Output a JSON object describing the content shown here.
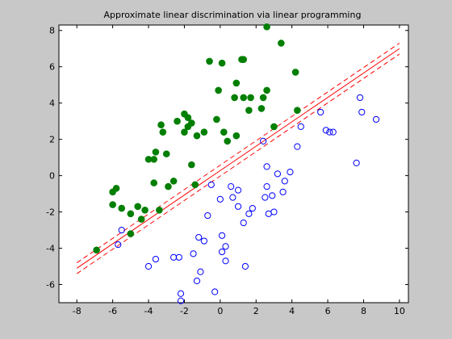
{
  "chart_data": {
    "type": "scatter",
    "title": "Approximate linear discrimination via linear programming",
    "xlabel": "",
    "ylabel": "",
    "xlim": [
      -9,
      10.5
    ],
    "ylim": [
      -7,
      8.3
    ],
    "xticks": [
      -8,
      -6,
      -4,
      -2,
      0,
      2,
      4,
      6,
      8,
      10
    ],
    "yticks": [
      -6,
      -4,
      -2,
      0,
      2,
      4,
      6,
      8
    ],
    "grid": false,
    "legend": "none",
    "series": [
      {
        "marker": "filled-circle",
        "color": "#007f00",
        "points": [
          [
            -6.9,
            -4.1
          ],
          [
            -5.0,
            -3.2
          ],
          [
            -4.4,
            -2.4
          ],
          [
            -5.0,
            -2.1
          ],
          [
            -5.5,
            -1.8
          ],
          [
            -6.0,
            -1.6
          ],
          [
            -4.6,
            -1.7
          ],
          [
            -4.2,
            -1.9
          ],
          [
            -6.0,
            -0.9
          ],
          [
            -5.8,
            -0.7
          ],
          [
            -3.4,
            -1.9
          ],
          [
            -4.0,
            0.9
          ],
          [
            -3.7,
            0.9
          ],
          [
            -3.7,
            -0.4
          ],
          [
            -3.6,
            1.3
          ],
          [
            -3.0,
            1.2
          ],
          [
            -2.9,
            -0.6
          ],
          [
            -2.6,
            -0.3
          ],
          [
            -3.2,
            2.4
          ],
          [
            -3.3,
            2.8
          ],
          [
            -2.4,
            3.0
          ],
          [
            -2.0,
            2.4
          ],
          [
            -2.0,
            3.4
          ],
          [
            -1.8,
            2.7
          ],
          [
            -1.8,
            3.2
          ],
          [
            -1.6,
            2.9
          ],
          [
            -1.6,
            0.6
          ],
          [
            -1.4,
            -0.5
          ],
          [
            -1.3,
            2.2
          ],
          [
            -0.9,
            2.4
          ],
          [
            -0.6,
            6.3
          ],
          [
            -0.2,
            3.1
          ],
          [
            -0.1,
            4.7
          ],
          [
            0.1,
            6.2
          ],
          [
            0.2,
            2.4
          ],
          [
            0.4,
            1.9
          ],
          [
            0.8,
            4.3
          ],
          [
            0.9,
            5.1
          ],
          [
            0.9,
            2.2
          ],
          [
            1.2,
            6.4
          ],
          [
            1.3,
            6.4
          ],
          [
            1.3,
            4.3
          ],
          [
            1.6,
            3.6
          ],
          [
            1.7,
            4.3
          ],
          [
            2.3,
            3.7
          ],
          [
            2.4,
            4.3
          ],
          [
            2.6,
            8.2
          ],
          [
            2.6,
            4.7
          ],
          [
            3.0,
            2.7
          ],
          [
            3.4,
            7.3
          ],
          [
            4.2,
            5.7
          ],
          [
            4.3,
            3.6
          ]
        ]
      },
      {
        "marker": "open-circle",
        "color": "#0000ff",
        "points": [
          [
            -5.5,
            -3.0
          ],
          [
            -5.7,
            -3.8
          ],
          [
            -4.0,
            -5.0
          ],
          [
            -3.6,
            -4.6
          ],
          [
            -2.6,
            -4.5
          ],
          [
            -2.3,
            -4.5
          ],
          [
            -2.2,
            -6.5
          ],
          [
            -2.2,
            -6.9
          ],
          [
            -1.5,
            -4.3
          ],
          [
            -1.3,
            -5.8
          ],
          [
            -1.1,
            -5.3
          ],
          [
            -1.2,
            -3.4
          ],
          [
            -0.9,
            -3.6
          ],
          [
            -0.7,
            -2.2
          ],
          [
            -0.5,
            -0.5
          ],
          [
            -0.3,
            -6.4
          ],
          [
            0.0,
            -1.3
          ],
          [
            0.1,
            -3.3
          ],
          [
            0.1,
            -4.2
          ],
          [
            0.3,
            -4.7
          ],
          [
            0.3,
            -3.9
          ],
          [
            0.6,
            -0.6
          ],
          [
            0.7,
            -1.2
          ],
          [
            1.0,
            -1.7
          ],
          [
            1.0,
            -0.8
          ],
          [
            1.3,
            -2.6
          ],
          [
            1.4,
            -5.0
          ],
          [
            1.6,
            -2.1
          ],
          [
            1.8,
            -1.8
          ],
          [
            2.4,
            1.9
          ],
          [
            2.5,
            -1.2
          ],
          [
            2.6,
            -0.6
          ],
          [
            2.6,
            0.5
          ],
          [
            2.7,
            -2.1
          ],
          [
            2.9,
            -1.1
          ],
          [
            3.0,
            -2.0
          ],
          [
            3.2,
            0.1
          ],
          [
            3.5,
            -0.9
          ],
          [
            3.6,
            -0.3
          ],
          [
            3.9,
            0.2
          ],
          [
            4.3,
            1.6
          ],
          [
            4.5,
            2.7
          ],
          [
            5.6,
            3.5
          ],
          [
            5.9,
            2.5
          ],
          [
            6.1,
            2.4
          ],
          [
            6.3,
            2.4
          ],
          [
            7.6,
            0.7
          ],
          [
            7.8,
            4.3
          ],
          [
            7.9,
            3.5
          ],
          [
            8.7,
            3.1
          ]
        ]
      }
    ],
    "lines": [
      {
        "style": "solid",
        "color": "#ff0000",
        "points": [
          [
            -8,
            -5.1
          ],
          [
            10,
            7.0
          ]
        ]
      },
      {
        "style": "dashed",
        "color": "#ff0000",
        "points": [
          [
            -8,
            -4.8
          ],
          [
            10,
            7.3
          ]
        ]
      },
      {
        "style": "dashed",
        "color": "#ff0000",
        "points": [
          [
            -8,
            -5.4
          ],
          [
            10,
            6.7
          ]
        ]
      }
    ]
  }
}
